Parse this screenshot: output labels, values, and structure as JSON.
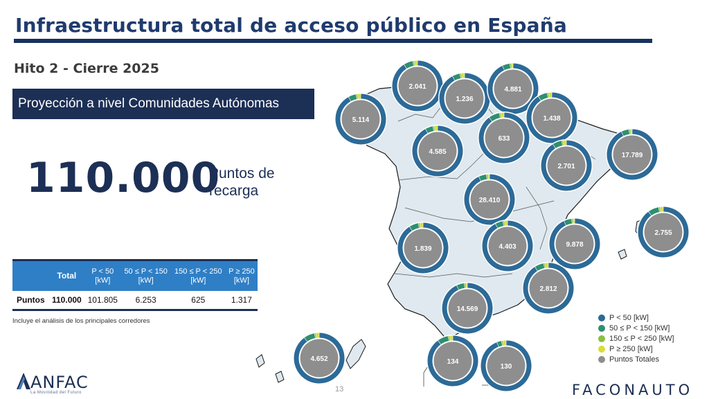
{
  "header": {
    "title": "Infraestructura total de acceso público en España",
    "subtitle": "Hito 2 - Cierre 2025",
    "banner": "Proyección a nivel Comunidades Autónomas"
  },
  "kpi": {
    "value": "110.000",
    "label_line1": "Puntos de",
    "label_line2": "recarga"
  },
  "table": {
    "headers": [
      {
        "l1": "",
        "l2": ""
      },
      {
        "l1": "Total",
        "l2": ""
      },
      {
        "l1": "P < 50",
        "l2": "[kW]"
      },
      {
        "l1": "50 ≤ P < 150",
        "l2": "[kW]"
      },
      {
        "l1": "150 ≤ P < 250",
        "l2": "[kW]"
      },
      {
        "l1": "P ≥ 250",
        "l2": "[kW]"
      }
    ],
    "row": {
      "label": "Puntos",
      "total": "110.000",
      "p50": "101.805",
      "p150": "6.253",
      "p250": "625",
      "p250plus": "1.317"
    },
    "note": "Incluye el análisis de los principales corredores"
  },
  "colors": {
    "p_lt_50": "#2c6a97",
    "p_50_150": "#2f8f6e",
    "p_150_250": "#8bbf3f",
    "p_ge_250": "#d9dd3a",
    "totales": "#8f8e8e",
    "brand_navy": "#1c2f55",
    "table_header": "#2f7fc6",
    "map_fill": "#dfe9ef"
  },
  "chart_data": {
    "type": "pie",
    "title": "",
    "legend_position": "bottom-right",
    "legend": [
      {
        "name": "P < 50 [kW]",
        "color": "#2c6a97"
      },
      {
        "name": "50 ≤ P < 150 [kW]",
        "color": "#2f8f6e"
      },
      {
        "name": "150 ≤ P < 250 [kW]",
        "color": "#8bbf3f"
      },
      {
        "name": "P ≥ 250 [kW]",
        "color": "#d9dd3a"
      },
      {
        "name": "Puntos Totales",
        "color": "#8f8e8e"
      }
    ],
    "regions": [
      {
        "label": "5.114",
        "total": 5114,
        "shares": [
          0.92,
          0.05,
          0.01,
          0.02
        ]
      },
      {
        "label": "2.041",
        "total": 2041,
        "shares": [
          0.91,
          0.06,
          0.01,
          0.02
        ]
      },
      {
        "label": "1.236",
        "total": 1236,
        "shares": [
          0.92,
          0.05,
          0.01,
          0.02
        ]
      },
      {
        "label": "4.881",
        "total": 4881,
        "shares": [
          0.93,
          0.05,
          0.01,
          0.01
        ]
      },
      {
        "label": "1.438",
        "total": 1438,
        "shares": [
          0.91,
          0.06,
          0.01,
          0.02
        ]
      },
      {
        "label": "633",
        "total": 633,
        "shares": [
          0.9,
          0.07,
          0.01,
          0.02
        ]
      },
      {
        "label": "4.585",
        "total": 4585,
        "shares": [
          0.92,
          0.05,
          0.01,
          0.02
        ]
      },
      {
        "label": "2.701",
        "total": 2701,
        "shares": [
          0.91,
          0.06,
          0.01,
          0.02
        ]
      },
      {
        "label": "17.789",
        "total": 17789,
        "shares": [
          0.93,
          0.05,
          0.01,
          0.01
        ]
      },
      {
        "label": "28.410",
        "total": 28410,
        "shares": [
          0.93,
          0.05,
          0.01,
          0.01
        ]
      },
      {
        "label": "2.755",
        "total": 2755,
        "shares": [
          0.9,
          0.07,
          0.01,
          0.02
        ]
      },
      {
        "label": "1.839",
        "total": 1839,
        "shares": [
          0.91,
          0.06,
          0.01,
          0.02
        ]
      },
      {
        "label": "4.403",
        "total": 4403,
        "shares": [
          0.92,
          0.05,
          0.01,
          0.02
        ]
      },
      {
        "label": "9.878",
        "total": 9878,
        "shares": [
          0.93,
          0.05,
          0.01,
          0.01
        ]
      },
      {
        "label": "2.812",
        "total": 2812,
        "shares": [
          0.91,
          0.06,
          0.01,
          0.02
        ]
      },
      {
        "label": "14.569",
        "total": 14569,
        "shares": [
          0.93,
          0.05,
          0.01,
          0.01
        ]
      },
      {
        "label": "4.652",
        "total": 4652,
        "shares": [
          0.9,
          0.07,
          0.01,
          0.02
        ]
      },
      {
        "label": "134",
        "total": 134,
        "shares": [
          0.9,
          0.07,
          0.01,
          0.02
        ]
      },
      {
        "label": "130",
        "total": 130,
        "shares": [
          0.94,
          0.03,
          0.01,
          0.02
        ]
      }
    ]
  },
  "footer": {
    "anfac": "ANFAC",
    "anfac_tagline": "La Movilidad del Futuro",
    "page": "13",
    "faconauto": "FACONAUTO"
  }
}
